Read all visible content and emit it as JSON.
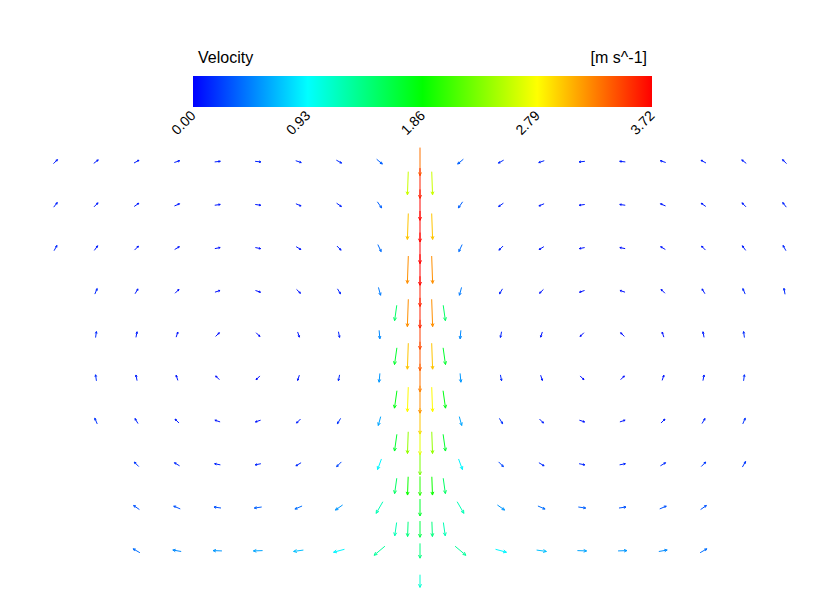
{
  "chart_data": {
    "type": "vector",
    "title": "Velocity",
    "colorbar": {
      "label": "[m s^-1]",
      "range": [
        0,
        3.72
      ],
      "ticks": [
        {
          "value": 0,
          "label": "0.00"
        },
        0.93,
        1.86,
        2.79,
        3.72
      ],
      "colors": [
        "#0000ff",
        "#00ffff",
        "#00ff00",
        "#ffff00",
        "#ff0000"
      ]
    },
    "xlim": [
      -1,
      1
    ],
    "ylim": [
      -0.05,
      1
    ],
    "tick_labels": false,
    "grid": false,
    "vectors": [
      [
        -0.9,
        0.95,
        0.1,
        45
      ],
      [
        -0.8,
        0.95,
        0.1,
        38
      ],
      [
        -0.7,
        0.95,
        0.1,
        29
      ],
      [
        -0.6,
        0.95,
        0.1,
        18
      ],
      [
        -0.5,
        0.95,
        0.1,
        6
      ],
      [
        -0.4,
        0.95,
        0.12,
        -6
      ],
      [
        -0.3,
        0.95,
        0.12,
        -18
      ],
      [
        -0.2,
        0.95,
        0.15,
        -29
      ],
      [
        -0.1,
        0.95,
        0.35,
        -40
      ],
      [
        0,
        0.95,
        3.3,
        -90
      ],
      [
        0.1,
        0.95,
        0.35,
        -140
      ],
      [
        0.2,
        0.95,
        0.15,
        -151
      ],
      [
        0.3,
        0.95,
        0.12,
        -162
      ],
      [
        0.4,
        0.95,
        0.12,
        -174
      ],
      [
        0.5,
        0.95,
        0.1,
        174
      ],
      [
        0.6,
        0.95,
        0.1,
        162
      ],
      [
        0.7,
        0.95,
        0.1,
        151
      ],
      [
        0.8,
        0.95,
        0.1,
        142
      ],
      [
        0.9,
        0.95,
        0.1,
        135
      ],
      [
        -0.9,
        0.85,
        0.12,
        52
      ],
      [
        -0.8,
        0.85,
        0.1,
        45
      ],
      [
        -0.7,
        0.85,
        0.09,
        35
      ],
      [
        -0.6,
        0.85,
        0.08,
        23
      ],
      [
        -0.5,
        0.85,
        0.08,
        8
      ],
      [
        -0.4,
        0.85,
        0.08,
        -8
      ],
      [
        -0.3,
        0.85,
        0.09,
        -23
      ],
      [
        -0.2,
        0.85,
        0.12,
        -35
      ],
      [
        -0.1,
        0.85,
        0.35,
        -55
      ],
      [
        0,
        0.85,
        3.7,
        -90
      ],
      [
        0.1,
        0.85,
        0.35,
        -125
      ],
      [
        0.2,
        0.85,
        0.12,
        -145
      ],
      [
        0.3,
        0.85,
        0.09,
        -157
      ],
      [
        0.4,
        0.85,
        0.08,
        -172
      ],
      [
        0.5,
        0.85,
        0.08,
        172
      ],
      [
        0.6,
        0.85,
        0.08,
        157
      ],
      [
        0.7,
        0.85,
        0.09,
        145
      ],
      [
        0.8,
        0.85,
        0.1,
        135
      ],
      [
        0.9,
        0.85,
        0.12,
        128
      ],
      [
        -0.9,
        0.75,
        0.14,
        61
      ],
      [
        -0.8,
        0.75,
        0.1,
        54
      ],
      [
        -0.7,
        0.75,
        0.08,
        45
      ],
      [
        -0.6,
        0.75,
        0.07,
        31
      ],
      [
        -0.5,
        0.75,
        0.06,
        11
      ],
      [
        -0.4,
        0.75,
        0.06,
        -11
      ],
      [
        -0.3,
        0.75,
        0.08,
        -31
      ],
      [
        -0.2,
        0.75,
        0.12,
        -45
      ],
      [
        -0.1,
        0.75,
        0.4,
        -65
      ],
      [
        0,
        0.75,
        3.72,
        -90
      ],
      [
        0.1,
        0.75,
        0.4,
        -115
      ],
      [
        0.2,
        0.75,
        0.12,
        -135
      ],
      [
        0.3,
        0.75,
        0.08,
        -149
      ],
      [
        0.4,
        0.75,
        0.06,
        -169
      ],
      [
        0.5,
        0.75,
        0.06,
        169
      ],
      [
        0.6,
        0.75,
        0.07,
        149
      ],
      [
        0.7,
        0.75,
        0.08,
        135
      ],
      [
        0.8,
        0.75,
        0.1,
        126
      ],
      [
        0.9,
        0.75,
        0.14,
        119
      ],
      [
        -0.8,
        0.65,
        0.14,
        67
      ],
      [
        -0.7,
        0.65,
        0.09,
        59
      ],
      [
        -0.6,
        0.65,
        0.06,
        45
      ],
      [
        -0.5,
        0.65,
        0.05,
        18
      ],
      [
        -0.4,
        0.65,
        0.05,
        -18
      ],
      [
        -0.3,
        0.65,
        0.07,
        -45
      ],
      [
        -0.2,
        0.65,
        0.12,
        -59
      ],
      [
        -0.1,
        0.65,
        0.45,
        -75
      ],
      [
        0,
        0.65,
        3.6,
        -90
      ],
      [
        0.1,
        0.65,
        0.45,
        -105
      ],
      [
        0.2,
        0.65,
        0.12,
        -121
      ],
      [
        0.3,
        0.65,
        0.07,
        -135
      ],
      [
        0.4,
        0.65,
        0.05,
        -162
      ],
      [
        0.5,
        0.65,
        0.05,
        162
      ],
      [
        0.6,
        0.65,
        0.06,
        135
      ],
      [
        0.7,
        0.65,
        0.09,
        121
      ],
      [
        0.8,
        0.65,
        0.14,
        113
      ],
      [
        0.9,
        0.65,
        0.15,
        100
      ],
      [
        -0.8,
        0.55,
        0.15,
        82
      ],
      [
        -0.7,
        0.55,
        0.1,
        79
      ],
      [
        -0.6,
        0.55,
        0.06,
        72
      ],
      [
        -0.5,
        0.55,
        0.04,
        45
      ],
      [
        -0.4,
        0.55,
        0.04,
        -45
      ],
      [
        -0.3,
        0.55,
        0.07,
        -72
      ],
      [
        -0.2,
        0.55,
        0.12,
        -79
      ],
      [
        -0.1,
        0.55,
        0.5,
        -85
      ],
      [
        0,
        0.55,
        3.5,
        -90
      ],
      [
        0.1,
        0.55,
        0.5,
        -95
      ],
      [
        0.2,
        0.55,
        0.12,
        -101
      ],
      [
        0.3,
        0.55,
        0.07,
        -108
      ],
      [
        0.4,
        0.55,
        0.04,
        -135
      ],
      [
        0.5,
        0.55,
        0.04,
        135
      ],
      [
        0.6,
        0.55,
        0.06,
        108
      ],
      [
        0.7,
        0.55,
        0.1,
        101
      ],
      [
        0.8,
        0.55,
        0.15,
        98
      ],
      [
        -0.8,
        0.45,
        0.16,
        98
      ],
      [
        -0.7,
        0.45,
        0.11,
        101
      ],
      [
        -0.6,
        0.45,
        0.07,
        108
      ],
      [
        -0.5,
        0.45,
        0.04,
        135
      ],
      [
        -0.4,
        0.45,
        0.04,
        -135
      ],
      [
        -0.3,
        0.45,
        0.08,
        -108
      ],
      [
        -0.2,
        0.45,
        0.14,
        -101
      ],
      [
        -0.1,
        0.45,
        0.55,
        -95
      ],
      [
        0,
        0.45,
        3.3,
        -90
      ],
      [
        0.1,
        0.45,
        0.55,
        -85
      ],
      [
        0.2,
        0.45,
        0.14,
        -79
      ],
      [
        0.3,
        0.45,
        0.08,
        -72
      ],
      [
        0.4,
        0.45,
        0.04,
        -45
      ],
      [
        0.5,
        0.45,
        0.04,
        45
      ],
      [
        0.6,
        0.45,
        0.07,
        72
      ],
      [
        0.7,
        0.45,
        0.11,
        79
      ],
      [
        0.8,
        0.45,
        0.16,
        82
      ],
      [
        -0.8,
        0.35,
        0.18,
        113
      ],
      [
        -0.7,
        0.35,
        0.12,
        121
      ],
      [
        -0.6,
        0.35,
        0.09,
        135
      ],
      [
        -0.5,
        0.35,
        0.07,
        162
      ],
      [
        -0.4,
        0.35,
        0.07,
        -162
      ],
      [
        -0.3,
        0.35,
        0.1,
        -135
      ],
      [
        -0.2,
        0.35,
        0.18,
        -121
      ],
      [
        -0.1,
        0.35,
        0.6,
        -105
      ],
      [
        0,
        0.35,
        3.0,
        -90
      ],
      [
        0.1,
        0.35,
        0.6,
        -75
      ],
      [
        0.2,
        0.35,
        0.18,
        -59
      ],
      [
        0.3,
        0.35,
        0.1,
        -45
      ],
      [
        0.4,
        0.35,
        0.07,
        -18
      ],
      [
        0.5,
        0.35,
        0.07,
        18
      ],
      [
        0.6,
        0.35,
        0.09,
        45
      ],
      [
        0.7,
        0.35,
        0.12,
        59
      ],
      [
        0.8,
        0.35,
        0.18,
        67
      ],
      [
        -0.7,
        0.25,
        0.2,
        135
      ],
      [
        -0.6,
        0.25,
        0.15,
        149
      ],
      [
        -0.5,
        0.25,
        0.13,
        169
      ],
      [
        -0.4,
        0.25,
        0.13,
        -169
      ],
      [
        -0.3,
        0.25,
        0.15,
        -149
      ],
      [
        -0.2,
        0.25,
        0.25,
        -135
      ],
      [
        -0.1,
        0.25,
        0.9,
        -110
      ],
      [
        0,
        0.25,
        2.3,
        -90
      ],
      [
        0.1,
        0.25,
        0.9,
        -70
      ],
      [
        0.2,
        0.25,
        0.25,
        -45
      ],
      [
        0.3,
        0.25,
        0.15,
        -31
      ],
      [
        0.4,
        0.25,
        0.13,
        -11
      ],
      [
        0.5,
        0.25,
        0.13,
        11
      ],
      [
        0.6,
        0.25,
        0.15,
        31
      ],
      [
        0.7,
        0.25,
        0.2,
        45
      ],
      [
        0.8,
        0.25,
        0.2,
        60
      ],
      [
        -0.7,
        0.15,
        0.3,
        145
      ],
      [
        -0.6,
        0.15,
        0.3,
        157
      ],
      [
        -0.5,
        0.15,
        0.3,
        172
      ],
      [
        -0.4,
        0.15,
        0.35,
        -172
      ],
      [
        -0.3,
        0.15,
        0.4,
        -157
      ],
      [
        -0.2,
        0.15,
        0.55,
        -145
      ],
      [
        -0.1,
        0.15,
        1.2,
        -120
      ],
      [
        0,
        0.15,
        1.7,
        -90
      ],
      [
        0.1,
        0.15,
        1.2,
        -60
      ],
      [
        0.2,
        0.15,
        0.55,
        -35
      ],
      [
        0.3,
        0.15,
        0.4,
        -23
      ],
      [
        0.4,
        0.15,
        0.35,
        -8
      ],
      [
        0.5,
        0.15,
        0.3,
        8
      ],
      [
        0.6,
        0.15,
        0.3,
        23
      ],
      [
        0.7,
        0.15,
        0.3,
        35
      ],
      [
        -0.7,
        0.05,
        0.4,
        150
      ],
      [
        -0.6,
        0.05,
        0.5,
        170
      ],
      [
        -0.5,
        0.05,
        0.55,
        178
      ],
      [
        -0.4,
        0.05,
        0.6,
        -178
      ],
      [
        -0.3,
        0.05,
        0.7,
        -172
      ],
      [
        -0.2,
        0.05,
        0.9,
        -165
      ],
      [
        -0.1,
        0.05,
        1.3,
        -140
      ],
      [
        0,
        0.05,
        1.4,
        -90
      ],
      [
        0.1,
        0.05,
        1.3,
        -40
      ],
      [
        0.2,
        0.05,
        0.9,
        -15
      ],
      [
        0.3,
        0.05,
        0.7,
        -8
      ],
      [
        0.4,
        0.05,
        0.6,
        -2
      ],
      [
        0.5,
        0.05,
        0.55,
        2
      ],
      [
        0.6,
        0.05,
        0.5,
        10
      ],
      [
        0.7,
        0.05,
        0.4,
        30
      ],
      [
        0,
        -0.02,
        1.1,
        -90
      ],
      [
        -0.06,
        0.6,
        1.5,
        -98
      ],
      [
        -0.06,
        0.5,
        1.7,
        -98
      ],
      [
        -0.06,
        0.4,
        1.8,
        -98
      ],
      [
        -0.06,
        0.3,
        1.7,
        -98
      ],
      [
        -0.06,
        0.2,
        1.5,
        -98
      ],
      [
        -0.06,
        0.1,
        1.2,
        -98
      ],
      [
        0.06,
        0.6,
        1.5,
        -82
      ],
      [
        0.06,
        0.5,
        1.7,
        -82
      ],
      [
        0.06,
        0.4,
        1.8,
        -82
      ],
      [
        0.06,
        0.3,
        1.7,
        -82
      ],
      [
        0.06,
        0.2,
        1.5,
        -82
      ],
      [
        0.06,
        0.1,
        1.2,
        -82
      ],
      [
        -0.03,
        0.9,
        2.6,
        -92
      ],
      [
        -0.03,
        0.8,
        3.0,
        -92
      ],
      [
        -0.03,
        0.7,
        3.2,
        -92
      ],
      [
        -0.03,
        0.6,
        3.2,
        -92
      ],
      [
        -0.03,
        0.5,
        3.0,
        -92
      ],
      [
        -0.03,
        0.4,
        2.8,
        -92
      ],
      [
        -0.03,
        0.3,
        2.4,
        -92
      ],
      [
        -0.03,
        0.2,
        1.9,
        -92
      ],
      [
        -0.03,
        0.1,
        1.4,
        -92
      ],
      [
        0.03,
        0.9,
        2.6,
        -88
      ],
      [
        0.03,
        0.8,
        3.0,
        -88
      ],
      [
        0.03,
        0.7,
        3.2,
        -88
      ],
      [
        0.03,
        0.6,
        3.2,
        -88
      ],
      [
        0.03,
        0.5,
        3.0,
        -88
      ],
      [
        0.03,
        0.4,
        2.8,
        -88
      ],
      [
        0.03,
        0.3,
        2.4,
        -88
      ],
      [
        0.03,
        0.2,
        1.9,
        -88
      ],
      [
        0.03,
        0.1,
        1.4,
        -88
      ],
      [
        0,
        0.9,
        3.6,
        -90
      ],
      [
        0,
        0.8,
        3.7,
        -90
      ],
      [
        0,
        0.7,
        3.72,
        -90
      ],
      [
        0,
        0.6,
        3.6,
        -90
      ],
      [
        0,
        0.5,
        3.4,
        -90
      ],
      [
        0,
        0.4,
        3.2,
        -90
      ],
      [
        0,
        0.3,
        2.7,
        -90
      ],
      [
        0,
        0.2,
        2.0,
        -90
      ],
      [
        0,
        0.1,
        1.6,
        -90
      ]
    ]
  }
}
